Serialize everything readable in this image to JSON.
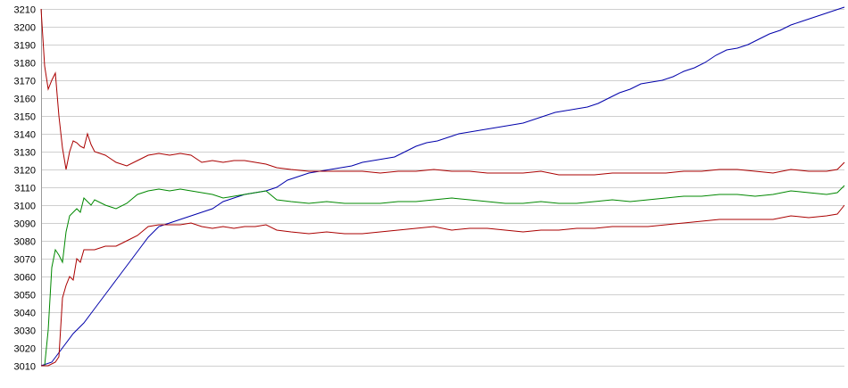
{
  "chart_data": {
    "type": "line",
    "title": "",
    "xlabel": "",
    "ylabel": "",
    "ylim": [
      3010,
      3210
    ],
    "yticks": [
      3010,
      3020,
      3030,
      3040,
      3050,
      3060,
      3070,
      3080,
      3090,
      3100,
      3110,
      3120,
      3130,
      3140,
      3150,
      3160,
      3170,
      3180,
      3190,
      3200,
      3210
    ],
    "grid": true,
    "x_range": [
      0,
      225
    ],
    "series": [
      {
        "color": "#0000aa",
        "points": [
          [
            0,
            3010
          ],
          [
            3,
            3012
          ],
          [
            6,
            3020
          ],
          [
            9,
            3028
          ],
          [
            12,
            3034
          ],
          [
            15,
            3042
          ],
          [
            18,
            3050
          ],
          [
            21,
            3058
          ],
          [
            24,
            3066
          ],
          [
            27,
            3074
          ],
          [
            30,
            3082
          ],
          [
            33,
            3088
          ],
          [
            36,
            3090
          ],
          [
            39,
            3092
          ],
          [
            42,
            3094
          ],
          [
            45,
            3096
          ],
          [
            48,
            3098
          ],
          [
            51,
            3102
          ],
          [
            54,
            3104
          ],
          [
            57,
            3106
          ],
          [
            60,
            3107
          ],
          [
            63,
            3108
          ],
          [
            66,
            3110
          ],
          [
            69,
            3114
          ],
          [
            72,
            3116
          ],
          [
            75,
            3118
          ],
          [
            78,
            3119
          ],
          [
            81,
            3120
          ],
          [
            84,
            3121
          ],
          [
            87,
            3122
          ],
          [
            90,
            3124
          ],
          [
            93,
            3125
          ],
          [
            96,
            3126
          ],
          [
            99,
            3127
          ],
          [
            102,
            3130
          ],
          [
            105,
            3133
          ],
          [
            108,
            3135
          ],
          [
            111,
            3136
          ],
          [
            114,
            3138
          ],
          [
            117,
            3140
          ],
          [
            120,
            3141
          ],
          [
            123,
            3142
          ],
          [
            126,
            3143
          ],
          [
            129,
            3144
          ],
          [
            132,
            3145
          ],
          [
            135,
            3146
          ],
          [
            138,
            3148
          ],
          [
            141,
            3150
          ],
          [
            144,
            3152
          ],
          [
            147,
            3153
          ],
          [
            150,
            3154
          ],
          [
            153,
            3155
          ],
          [
            156,
            3157
          ],
          [
            159,
            3160
          ],
          [
            162,
            3163
          ],
          [
            165,
            3165
          ],
          [
            168,
            3168
          ],
          [
            171,
            3169
          ],
          [
            174,
            3170
          ],
          [
            177,
            3172
          ],
          [
            180,
            3175
          ],
          [
            183,
            3177
          ],
          [
            186,
            3180
          ],
          [
            189,
            3184
          ],
          [
            192,
            3187
          ],
          [
            195,
            3188
          ],
          [
            198,
            3190
          ],
          [
            201,
            3193
          ],
          [
            204,
            3196
          ],
          [
            207,
            3198
          ],
          [
            210,
            3201
          ],
          [
            213,
            3203
          ],
          [
            216,
            3205
          ],
          [
            219,
            3207
          ],
          [
            222,
            3209
          ],
          [
            225,
            3211
          ]
        ]
      },
      {
        "color": "#aa0000",
        "points": [
          [
            0,
            3210
          ],
          [
            1,
            3178
          ],
          [
            2,
            3165
          ],
          [
            3,
            3170
          ],
          [
            4,
            3174
          ],
          [
            5,
            3150
          ],
          [
            6,
            3132
          ],
          [
            7,
            3120
          ],
          [
            8,
            3130
          ],
          [
            9,
            3136
          ],
          [
            10,
            3135
          ],
          [
            11,
            3133
          ],
          [
            12,
            3132
          ],
          [
            13,
            3140
          ],
          [
            14,
            3134
          ],
          [
            15,
            3130
          ],
          [
            18,
            3128
          ],
          [
            21,
            3124
          ],
          [
            24,
            3122
          ],
          [
            27,
            3125
          ],
          [
            30,
            3128
          ],
          [
            33,
            3129
          ],
          [
            36,
            3128
          ],
          [
            39,
            3129
          ],
          [
            42,
            3128
          ],
          [
            45,
            3124
          ],
          [
            48,
            3125
          ],
          [
            51,
            3124
          ],
          [
            54,
            3125
          ],
          [
            57,
            3125
          ],
          [
            60,
            3124
          ],
          [
            63,
            3123
          ],
          [
            66,
            3121
          ],
          [
            70,
            3120
          ],
          [
            75,
            3119
          ],
          [
            80,
            3119
          ],
          [
            85,
            3119
          ],
          [
            90,
            3119
          ],
          [
            95,
            3118
          ],
          [
            100,
            3119
          ],
          [
            105,
            3119
          ],
          [
            110,
            3120
          ],
          [
            115,
            3119
          ],
          [
            120,
            3119
          ],
          [
            125,
            3118
          ],
          [
            130,
            3118
          ],
          [
            135,
            3118
          ],
          [
            140,
            3119
          ],
          [
            145,
            3117
          ],
          [
            150,
            3117
          ],
          [
            155,
            3117
          ],
          [
            160,
            3118
          ],
          [
            165,
            3118
          ],
          [
            170,
            3118
          ],
          [
            175,
            3118
          ],
          [
            180,
            3119
          ],
          [
            185,
            3119
          ],
          [
            190,
            3120
          ],
          [
            195,
            3120
          ],
          [
            200,
            3119
          ],
          [
            205,
            3118
          ],
          [
            210,
            3120
          ],
          [
            215,
            3119
          ],
          [
            220,
            3119
          ],
          [
            223,
            3120
          ],
          [
            225,
            3124
          ]
        ]
      },
      {
        "color": "#008800",
        "points": [
          [
            0,
            3010
          ],
          [
            1,
            3010
          ],
          [
            2,
            3030
          ],
          [
            3,
            3065
          ],
          [
            4,
            3075
          ],
          [
            5,
            3072
          ],
          [
            6,
            3068
          ],
          [
            7,
            3085
          ],
          [
            8,
            3094
          ],
          [
            9,
            3096
          ],
          [
            10,
            3098
          ],
          [
            11,
            3096
          ],
          [
            12,
            3104
          ],
          [
            13,
            3102
          ],
          [
            14,
            3100
          ],
          [
            15,
            3103
          ],
          [
            18,
            3100
          ],
          [
            21,
            3098
          ],
          [
            24,
            3101
          ],
          [
            27,
            3106
          ],
          [
            30,
            3108
          ],
          [
            33,
            3109
          ],
          [
            36,
            3108
          ],
          [
            39,
            3109
          ],
          [
            42,
            3108
          ],
          [
            45,
            3107
          ],
          [
            48,
            3106
          ],
          [
            51,
            3104
          ],
          [
            54,
            3105
          ],
          [
            57,
            3106
          ],
          [
            60,
            3107
          ],
          [
            63,
            3108
          ],
          [
            66,
            3103
          ],
          [
            70,
            3102
          ],
          [
            75,
            3101
          ],
          [
            80,
            3102
          ],
          [
            85,
            3101
          ],
          [
            90,
            3101
          ],
          [
            95,
            3101
          ],
          [
            100,
            3102
          ],
          [
            105,
            3102
          ],
          [
            110,
            3103
          ],
          [
            115,
            3104
          ],
          [
            120,
            3103
          ],
          [
            125,
            3102
          ],
          [
            130,
            3101
          ],
          [
            135,
            3101
          ],
          [
            140,
            3102
          ],
          [
            145,
            3101
          ],
          [
            150,
            3101
          ],
          [
            155,
            3102
          ],
          [
            160,
            3103
          ],
          [
            165,
            3102
          ],
          [
            170,
            3103
          ],
          [
            175,
            3104
          ],
          [
            180,
            3105
          ],
          [
            185,
            3105
          ],
          [
            190,
            3106
          ],
          [
            195,
            3106
          ],
          [
            200,
            3105
          ],
          [
            205,
            3106
          ],
          [
            210,
            3108
          ],
          [
            215,
            3107
          ],
          [
            220,
            3106
          ],
          [
            223,
            3107
          ],
          [
            225,
            3111
          ]
        ]
      },
      {
        "color": "#aa0000",
        "points": [
          [
            0,
            3010
          ],
          [
            2,
            3010
          ],
          [
            4,
            3012
          ],
          [
            5,
            3015
          ],
          [
            6,
            3048
          ],
          [
            7,
            3055
          ],
          [
            8,
            3060
          ],
          [
            9,
            3058
          ],
          [
            10,
            3070
          ],
          [
            11,
            3068
          ],
          [
            12,
            3075
          ],
          [
            15,
            3075
          ],
          [
            18,
            3077
          ],
          [
            21,
            3077
          ],
          [
            24,
            3080
          ],
          [
            27,
            3083
          ],
          [
            30,
            3088
          ],
          [
            33,
            3089
          ],
          [
            36,
            3089
          ],
          [
            39,
            3089
          ],
          [
            42,
            3090
          ],
          [
            45,
            3088
          ],
          [
            48,
            3087
          ],
          [
            51,
            3088
          ],
          [
            54,
            3087
          ],
          [
            57,
            3088
          ],
          [
            60,
            3088
          ],
          [
            63,
            3089
          ],
          [
            66,
            3086
          ],
          [
            70,
            3085
          ],
          [
            75,
            3084
          ],
          [
            80,
            3085
          ],
          [
            85,
            3084
          ],
          [
            90,
            3084
          ],
          [
            95,
            3085
          ],
          [
            100,
            3086
          ],
          [
            105,
            3087
          ],
          [
            110,
            3088
          ],
          [
            115,
            3086
          ],
          [
            120,
            3087
          ],
          [
            125,
            3087
          ],
          [
            130,
            3086
          ],
          [
            135,
            3085
          ],
          [
            140,
            3086
          ],
          [
            145,
            3086
          ],
          [
            150,
            3087
          ],
          [
            155,
            3087
          ],
          [
            160,
            3088
          ],
          [
            165,
            3088
          ],
          [
            170,
            3088
          ],
          [
            175,
            3089
          ],
          [
            180,
            3090
          ],
          [
            185,
            3091
          ],
          [
            190,
            3092
          ],
          [
            195,
            3092
          ],
          [
            200,
            3092
          ],
          [
            205,
            3092
          ],
          [
            210,
            3094
          ],
          [
            215,
            3093
          ],
          [
            220,
            3094
          ],
          [
            223,
            3095
          ],
          [
            225,
            3100
          ]
        ]
      }
    ]
  }
}
